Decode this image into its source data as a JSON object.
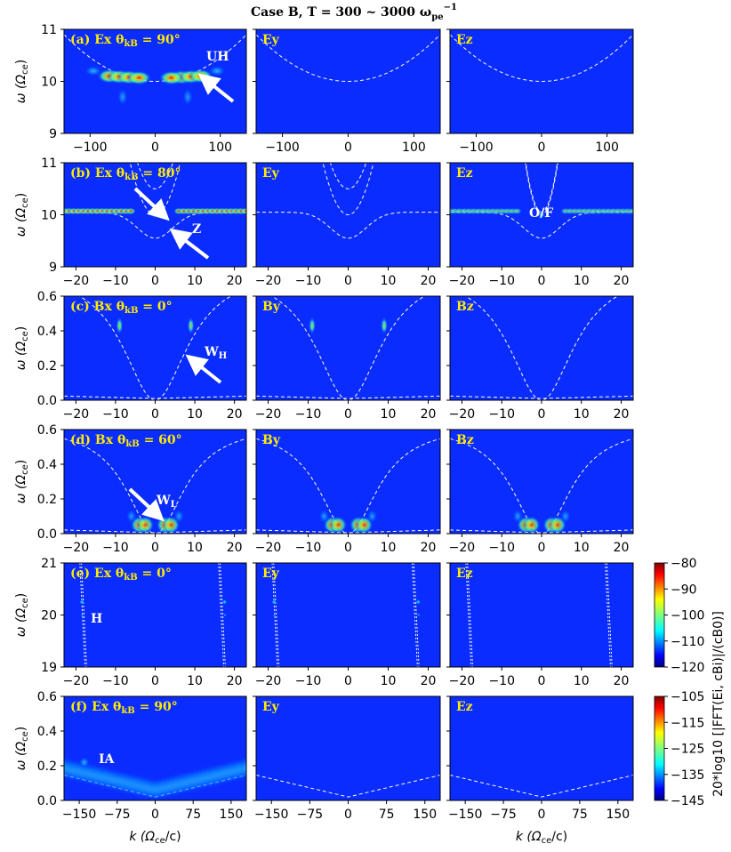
{
  "figure": {
    "title": "Case B, T = 300 ~ 3000 ω",
    "title_sub": "pe",
    "title_sup": "−1"
  },
  "ylabel": {
    "main": "ω (Ω",
    "sub": "ce",
    "close": ")"
  },
  "xlabel": {
    "main": "k (Ω",
    "sub": "ce",
    "close": "/c)"
  },
  "colorbars": [
    {
      "ticks": [
        "−80",
        "−90",
        "−100",
        "−110",
        "−120"
      ],
      "range": [
        -120,
        -80
      ]
    },
    {
      "ticks": [
        "−105",
        "−115",
        "−125",
        "−135",
        "−145"
      ],
      "range": [
        -145,
        -105
      ],
      "label": "20*log10 [|FFT(Ei, cBi)|/(cB0)]"
    }
  ],
  "annotations": {
    "UH": "UH",
    "Z": "Z",
    "OF": "O/F",
    "WH": "W",
    "WH_sub": "H",
    "WL": "W",
    "WL_sub": "L",
    "H": "H",
    "IA": "IA"
  },
  "chart_data": [
    {
      "type": "heatmap",
      "panel": "a",
      "rows": [
        {
          "label": "(a) Ex θkB = 90°",
          "comps": [
            "Ex",
            "Ey",
            "Ez"
          ]
        }
      ],
      "xticks": [
        "−100",
        "0",
        "100"
      ],
      "yticks": [
        "11",
        "10",
        "9"
      ],
      "xlim": [
        -140,
        140
      ],
      "ylim": [
        9,
        11
      ],
      "dispersion": "uh"
    },
    {
      "type": "heatmap",
      "panel": "b",
      "label": "(b) Ex θkB = 80°",
      "comps": [
        "Ex",
        "Ey",
        "Ez"
      ],
      "xticks": [
        "−20",
        "−10",
        "0",
        "10",
        "20"
      ],
      "yticks": [
        "11",
        "10",
        "9"
      ],
      "xlim": [
        -23,
        23
      ],
      "ylim": [
        9,
        11
      ],
      "dispersion": "z"
    },
    {
      "type": "heatmap",
      "panel": "c",
      "label": "(c) Bx θkB = 0°",
      "comps": [
        "Bx",
        "By",
        "Bz"
      ],
      "xticks": [
        "−20",
        "−10",
        "0",
        "10",
        "20"
      ],
      "yticks": [
        "0.6",
        "0.4",
        "0.2",
        "0.0"
      ],
      "xlim": [
        -23,
        23
      ],
      "ylim": [
        0,
        0.6
      ],
      "dispersion": "whistler"
    },
    {
      "type": "heatmap",
      "panel": "d",
      "label": "(d) Bx θkB = 60°",
      "comps": [
        "Bx",
        "By",
        "Bz"
      ],
      "xticks": [
        "−20",
        "−10",
        "0",
        "10",
        "20"
      ],
      "yticks": [
        "0.6",
        "0.4",
        "0.2",
        "0.0"
      ],
      "xlim": [
        -23,
        23
      ],
      "ylim": [
        0,
        0.6
      ],
      "dispersion": "whistler60"
    },
    {
      "type": "heatmap",
      "panel": "e",
      "label": "(e) Ex θkB = 0°",
      "comps": [
        "Ex",
        "Ey",
        "Ez"
      ],
      "xticks": [
        "−20",
        "−10",
        "0",
        "10",
        "20"
      ],
      "yticks": [
        "21",
        "20",
        "19"
      ],
      "xlim": [
        -23,
        23
      ],
      "ylim": [
        19,
        21
      ],
      "dispersion": "harmonic"
    },
    {
      "type": "heatmap",
      "panel": "f",
      "label": "(f) Ex θkB = 90°",
      "comps": [
        "Ex",
        "Ey",
        "Ez"
      ],
      "xticks": [
        "−150",
        "−75",
        "0",
        "75",
        "150"
      ],
      "yticks": [
        "0.6",
        "0.4",
        "0.2",
        "0.0"
      ],
      "xlim": [
        -180,
        180
      ],
      "ylim": [
        0,
        0.6
      ],
      "dispersion": "ia"
    }
  ],
  "panel_labels": {
    "a": [
      "(a) Ex θ",
      "Ey",
      "Ez"
    ],
    "b": [
      "(b) Ex θ",
      "Ey",
      "Ez"
    ],
    "c": [
      "(c) Bx θ",
      "By",
      "Bz"
    ],
    "d": [
      "(d) Bx θ",
      "By",
      "Bz"
    ],
    "e": [
      "(e) Ex θ",
      "Ey",
      "Ez"
    ],
    "f": [
      "(f) Ex θ",
      "Ey",
      "Ez"
    ]
  },
  "angle_sub": "kB",
  "angles": {
    "a": " = 90°",
    "b": " = 80°",
    "c": " = 0°",
    "d": " = 60°",
    "e": " = 0°",
    "f": " = 90°"
  }
}
